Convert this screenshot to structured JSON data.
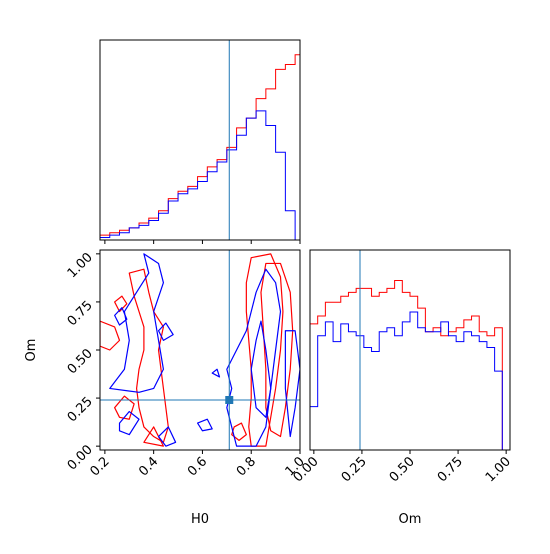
{
  "chart_data": {
    "type": "corner",
    "parameters": [
      "H0",
      "Om"
    ],
    "truth": {
      "H0": 0.71,
      "Om": 0.24
    },
    "colors": {
      "series_a": "#ff0000",
      "series_b": "#0000ff",
      "truth": "#1f77b4",
      "frame": "#000000"
    },
    "axes": {
      "H0": {
        "label": "H0",
        "range": [
          0.18,
          1.0
        ],
        "ticks": [
          0.2,
          0.4,
          0.6,
          0.8,
          1.0
        ],
        "tick_labels": [
          "0.2",
          "0.4",
          "0.6",
          "0.8",
          "1.0"
        ]
      },
      "Om": {
        "label": "Om",
        "range": [
          -0.02,
          1.02
        ],
        "ticks": [
          0.0,
          0.25,
          0.5,
          0.75,
          1.0
        ],
        "tick_labels": [
          "0.00",
          "0.25",
          "0.50",
          "0.75",
          "1.00"
        ]
      }
    },
    "hist_H0": {
      "type": "histogram",
      "edges": [
        0.18,
        0.22,
        0.26,
        0.3,
        0.34,
        0.38,
        0.42,
        0.46,
        0.5,
        0.54,
        0.58,
        0.62,
        0.66,
        0.7,
        0.74,
        0.78,
        0.82,
        0.86,
        0.9,
        0.94,
        0.98,
        1.0
      ],
      "series": [
        {
          "color_key": "series_a",
          "values": [
            2,
            3,
            4,
            5,
            7,
            9,
            12,
            17,
            20,
            22,
            26,
            30,
            33,
            38,
            46,
            50,
            58,
            62,
            70,
            72,
            76,
            55
          ]
        },
        {
          "color_key": "series_b",
          "values": [
            1,
            2,
            3,
            5,
            6,
            8,
            11,
            16,
            19,
            21,
            24,
            28,
            32,
            37,
            43,
            50,
            53,
            47,
            36,
            12,
            0,
            0
          ]
        }
      ]
    },
    "hist_Om": {
      "type": "histogram",
      "edges": [
        -0.02,
        0.02,
        0.06,
        0.1,
        0.14,
        0.18,
        0.22,
        0.26,
        0.3,
        0.34,
        0.38,
        0.42,
        0.46,
        0.5,
        0.54,
        0.58,
        0.62,
        0.66,
        0.7,
        0.74,
        0.78,
        0.82,
        0.86,
        0.9,
        0.94,
        0.98,
        1.02
      ],
      "series": [
        {
          "color_key": "series_a",
          "values": [
            64,
            68,
            75,
            75,
            78,
            80,
            82,
            82,
            78,
            80,
            82,
            86,
            80,
            78,
            72,
            60,
            62,
            58,
            60,
            62,
            66,
            68,
            60,
            58,
            62,
            0
          ]
        },
        {
          "color_key": "series_b",
          "values": [
            22,
            58,
            65,
            55,
            64,
            60,
            58,
            52,
            50,
            60,
            62,
            58,
            65,
            70,
            62,
            60,
            60,
            65,
            58,
            55,
            60,
            58,
            55,
            52,
            40,
            0
          ]
        }
      ]
    },
    "contours_H0_Om": {
      "type": "contour",
      "series": [
        {
          "color_key": "series_a",
          "levels": [
            [
              [
                0.8,
                0.98
              ],
              [
                0.78,
                0.85
              ],
              [
                0.78,
                0.7
              ],
              [
                0.79,
                0.55
              ],
              [
                0.8,
                0.4
              ],
              [
                0.8,
                0.25
              ],
              [
                0.79,
                0.1
              ],
              [
                0.8,
                0.0
              ],
              [
                0.86,
                0.0
              ],
              [
                0.88,
                0.15
              ],
              [
                0.9,
                0.3
              ],
              [
                0.92,
                0.5
              ],
              [
                0.93,
                0.7
              ],
              [
                0.92,
                0.88
              ],
              [
                0.88,
                1.0
              ]
            ],
            [
              [
                0.86,
                0.95
              ],
              [
                0.84,
                0.8
              ],
              [
                0.85,
                0.6
              ],
              [
                0.86,
                0.4
              ],
              [
                0.86,
                0.2
              ],
              [
                0.88,
                0.08
              ],
              [
                0.92,
                0.05
              ],
              [
                0.94,
                0.2
              ],
              [
                0.96,
                0.4
              ],
              [
                0.97,
                0.6
              ],
              [
                0.96,
                0.8
              ],
              [
                0.92,
                0.95
              ]
            ],
            [
              [
                0.3,
                0.9
              ],
              [
                0.32,
                0.78
              ],
              [
                0.34,
                0.7
              ],
              [
                0.36,
                0.62
              ],
              [
                0.36,
                0.5
              ],
              [
                0.34,
                0.4
              ],
              [
                0.33,
                0.3
              ],
              [
                0.34,
                0.2
              ],
              [
                0.36,
                0.1
              ],
              [
                0.4,
                0.05
              ],
              [
                0.44,
                0.02
              ],
              [
                0.46,
                0.1
              ],
              [
                0.44,
                0.3
              ],
              [
                0.42,
                0.5
              ],
              [
                0.44,
                0.62
              ],
              [
                0.4,
                0.7
              ],
              [
                0.38,
                0.8
              ],
              [
                0.36,
                0.92
              ]
            ],
            [
              [
                0.18,
                0.65
              ],
              [
                0.24,
                0.62
              ],
              [
                0.26,
                0.55
              ],
              [
                0.22,
                0.5
              ],
              [
                0.18,
                0.52
              ]
            ],
            [
              [
                0.24,
                0.2
              ],
              [
                0.28,
                0.26
              ],
              [
                0.32,
                0.22
              ],
              [
                0.3,
                0.14
              ],
              [
                0.26,
                0.15
              ]
            ],
            [
              [
                0.73,
                0.1
              ],
              [
                0.76,
                0.12
              ],
              [
                0.78,
                0.06
              ],
              [
                0.75,
                0.03
              ],
              [
                0.72,
                0.06
              ]
            ],
            [
              [
                0.36,
                0.02
              ],
              [
                0.4,
                0.1
              ],
              [
                0.44,
                0.0
              ]
            ],
            [
              [
                0.24,
                0.75
              ],
              [
                0.27,
                0.78
              ],
              [
                0.29,
                0.74
              ],
              [
                0.26,
                0.7
              ]
            ]
          ]
        },
        {
          "color_key": "series_b",
          "levels": [
            [
              [
                0.7,
                0.4
              ],
              [
                0.72,
                0.3
              ],
              [
                0.7,
                0.2
              ],
              [
                0.72,
                0.1
              ],
              [
                0.74,
                0.0
              ],
              [
                0.82,
                0.0
              ],
              [
                0.86,
                0.1
              ],
              [
                0.88,
                0.3
              ],
              [
                0.9,
                0.5
              ],
              [
                0.92,
                0.7
              ],
              [
                0.9,
                0.85
              ],
              [
                0.86,
                0.92
              ],
              [
                0.82,
                0.8
              ],
              [
                0.78,
                0.6
              ],
              [
                0.74,
                0.5
              ]
            ],
            [
              [
                0.84,
                0.65
              ],
              [
                0.86,
                0.5
              ],
              [
                0.88,
                0.3
              ],
              [
                0.86,
                0.15
              ],
              [
                0.82,
                0.2
              ],
              [
                0.8,
                0.4
              ],
              [
                0.82,
                0.55
              ]
            ],
            [
              [
                0.22,
                0.3
              ],
              [
                0.28,
                0.4
              ],
              [
                0.3,
                0.55
              ],
              [
                0.28,
                0.7
              ],
              [
                0.34,
                0.82
              ],
              [
                0.38,
                0.9
              ],
              [
                0.36,
                1.0
              ],
              [
                0.42,
                0.95
              ],
              [
                0.44,
                0.85
              ],
              [
                0.4,
                0.7
              ],
              [
                0.42,
                0.55
              ],
              [
                0.44,
                0.4
              ],
              [
                0.4,
                0.3
              ],
              [
                0.34,
                0.28
              ]
            ],
            [
              [
                0.26,
                0.12
              ],
              [
                0.3,
                0.18
              ],
              [
                0.34,
                0.14
              ],
              [
                0.3,
                0.06
              ],
              [
                0.26,
                0.08
              ]
            ],
            [
              [
                0.42,
                0.6
              ],
              [
                0.45,
                0.64
              ],
              [
                0.48,
                0.58
              ],
              [
                0.44,
                0.55
              ]
            ],
            [
              [
                0.58,
                0.12
              ],
              [
                0.62,
                0.14
              ],
              [
                0.64,
                0.09
              ],
              [
                0.6,
                0.08
              ]
            ],
            [
              [
                0.64,
                0.38
              ],
              [
                0.66,
                0.4
              ],
              [
                0.67,
                0.36
              ]
            ],
            [
              [
                0.94,
                0.6
              ],
              [
                0.98,
                0.6
              ],
              [
                1.0,
                0.4
              ],
              [
                0.98,
                0.2
              ],
              [
                0.96,
                0.05
              ],
              [
                0.94,
                0.3
              ]
            ],
            [
              [
                0.42,
                0.05
              ],
              [
                0.46,
                0.1
              ],
              [
                0.49,
                0.02
              ],
              [
                0.45,
                0.0
              ]
            ],
            [
              [
                0.24,
                0.68
              ],
              [
                0.27,
                0.72
              ],
              [
                0.29,
                0.66
              ],
              [
                0.26,
                0.63
              ]
            ]
          ]
        }
      ]
    }
  }
}
